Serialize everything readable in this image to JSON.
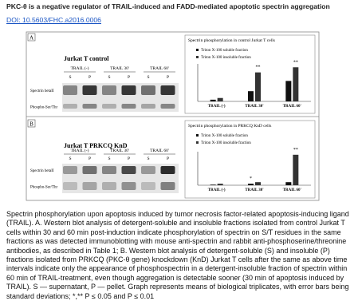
{
  "header": {
    "title": "PKC-θ is a negative regulator of TRAIL-induced and FADD-mediated apoptotic spectrin aggregation",
    "doi": "DOI: 10.5603/FHC.a2016.0006"
  },
  "figure": {
    "panels": [
      {
        "letter": "A",
        "blot_title": "Jurkat T control",
        "conditions": [
          "TRAIL (-)",
          "TRAIL 30'",
          "TRAIL 60'"
        ],
        "lanes": [
          "S",
          "P",
          "S",
          "P",
          "S",
          "P"
        ],
        "rows": [
          "Spectrin betaII",
          "Phospho-Ser/Thr"
        ],
        "chart_data": {
          "type": "bar",
          "title": "Spectrin phosphorylation in control Jurkat T cells",
          "categories": [
            "TRAIL (-)",
            "TRAIL 30'",
            "TRAIL 60'"
          ],
          "ylim": [
            0,
            1.1
          ],
          "series": [
            {
              "name": "Triton X-100 soluble fraction",
              "color": "#111111",
              "values": [
                0.05,
                0.3,
                0.6
              ],
              "marks": [
                null,
                null,
                null
              ]
            },
            {
              "name": "Triton X-100 insoluble fraction",
              "color": "#333333",
              "values": [
                0.1,
                0.85,
                1.0
              ],
              "marks": [
                null,
                "**",
                "**"
              ]
            }
          ]
        }
      },
      {
        "letter": "B",
        "blot_title": "Jurkat T PRKCQ KnD",
        "conditions": [
          "TRAIL (-)",
          "TRAIL 30'",
          "TRAIL 60'"
        ],
        "lanes": [
          "S",
          "P",
          "S",
          "P",
          "S",
          "P"
        ],
        "rows": [
          "Spectrin betaII",
          "Phospho-Ser/Thr"
        ],
        "chart_data": {
          "type": "bar",
          "title": "Spectrin phosphorylation in PRKCQ KnD cells",
          "categories": [
            "TRAIL (-)",
            "TRAIL 30'",
            "TRAIL 60'"
          ],
          "ylim": [
            0,
            1.1
          ],
          "series": [
            {
              "name": "Triton X-100 soluble fraction",
              "color": "#111111",
              "values": [
                0.02,
                0.05,
                0.1
              ],
              "marks": [
                null,
                "*",
                null
              ]
            },
            {
              "name": "Triton X-100 insoluble fraction",
              "color": "#333333",
              "values": [
                0.05,
                0.1,
                1.0
              ],
              "marks": [
                null,
                null,
                "**"
              ]
            }
          ]
        }
      }
    ]
  },
  "caption": "Spectrin phosphorylation upon apoptosis induced by tumor necrosis factor-related apoptosis-inducing ligand (TRAIL). A. Western blot analysis of detergent-soluble and insoluble fractions isolated from control Jurkat T cells within 30 and 60 min post-induction indicate phosphorylation of spectrin on S/T residues in the same fractions as was detected immunoblotting with mouse anti-spectrin and rabbit anti-phosphoserine/threonine antibodies, as described in Table 1; B. Western blot analysis of detergent-soluble (S) and insoluble (P) fractions isolated from PRKCQ (PKC-θ gene) knockdown (KnD) Jurkat T cells after the same as above time intervals indicate only the appearance of phosphospectrin in a detergent-insoluble fraction of spectrin within 60 min of TRAIL-treatment, even though aggregation is detectable sooner (30 min of apoptosis induced by TRAIL). S — supernatant, P — pellet. Graph represents means of biological triplicates, with error bars being standard deviations; *,** P ≤ 0.05 and P ≤ 0.01"
}
